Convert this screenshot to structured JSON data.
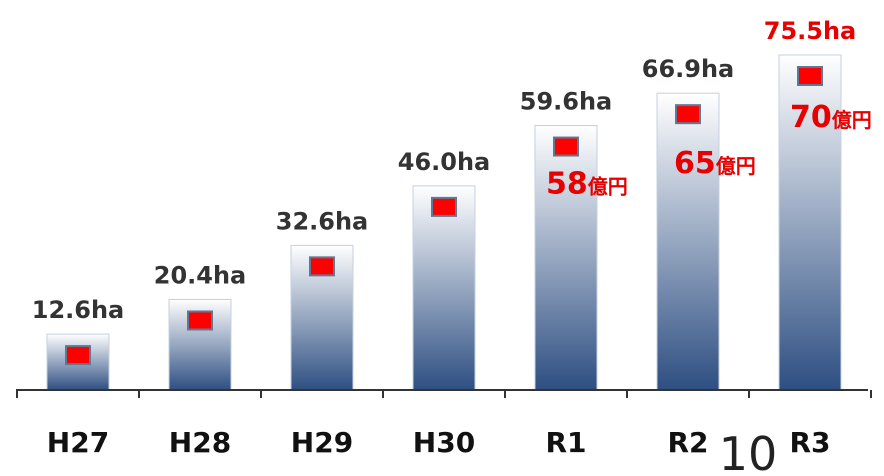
{
  "chart_data": {
    "type": "bar",
    "categories": [
      "H27",
      "H28",
      "H29",
      "H30",
      "R1",
      "R2",
      "R3"
    ],
    "series": [
      {
        "values": [
          12.6,
          20.4,
          32.6,
          46.0,
          59.6,
          66.9,
          75.5
        ]
      }
    ],
    "value_labels": [
      "12.6ha",
      "20.4ha",
      "32.6ha",
      "46.0ha",
      "59.6ha",
      "66.9ha",
      "75.5ha"
    ],
    "value_label_colors": [
      "#333333",
      "#333333",
      "#333333",
      "#333333",
      "#333333",
      "#333333",
      "#e60000"
    ],
    "amount_annotations": [
      {
        "category": "R1",
        "value": 58,
        "number": "58",
        "unit": "億円"
      },
      {
        "category": "R2",
        "value": 65,
        "number": "65",
        "unit": "億円"
      },
      {
        "category": "R3",
        "value": 70,
        "number": "70",
        "unit": "億円"
      }
    ],
    "ylim": [
      0,
      80
    ],
    "grid": false,
    "bar_gradient": [
      "#ffffff",
      "#2e4f82"
    ],
    "marker_color": "#ff0000",
    "annotation_color": "#e60000",
    "axis_color": "#333333"
  },
  "page_number": "10"
}
